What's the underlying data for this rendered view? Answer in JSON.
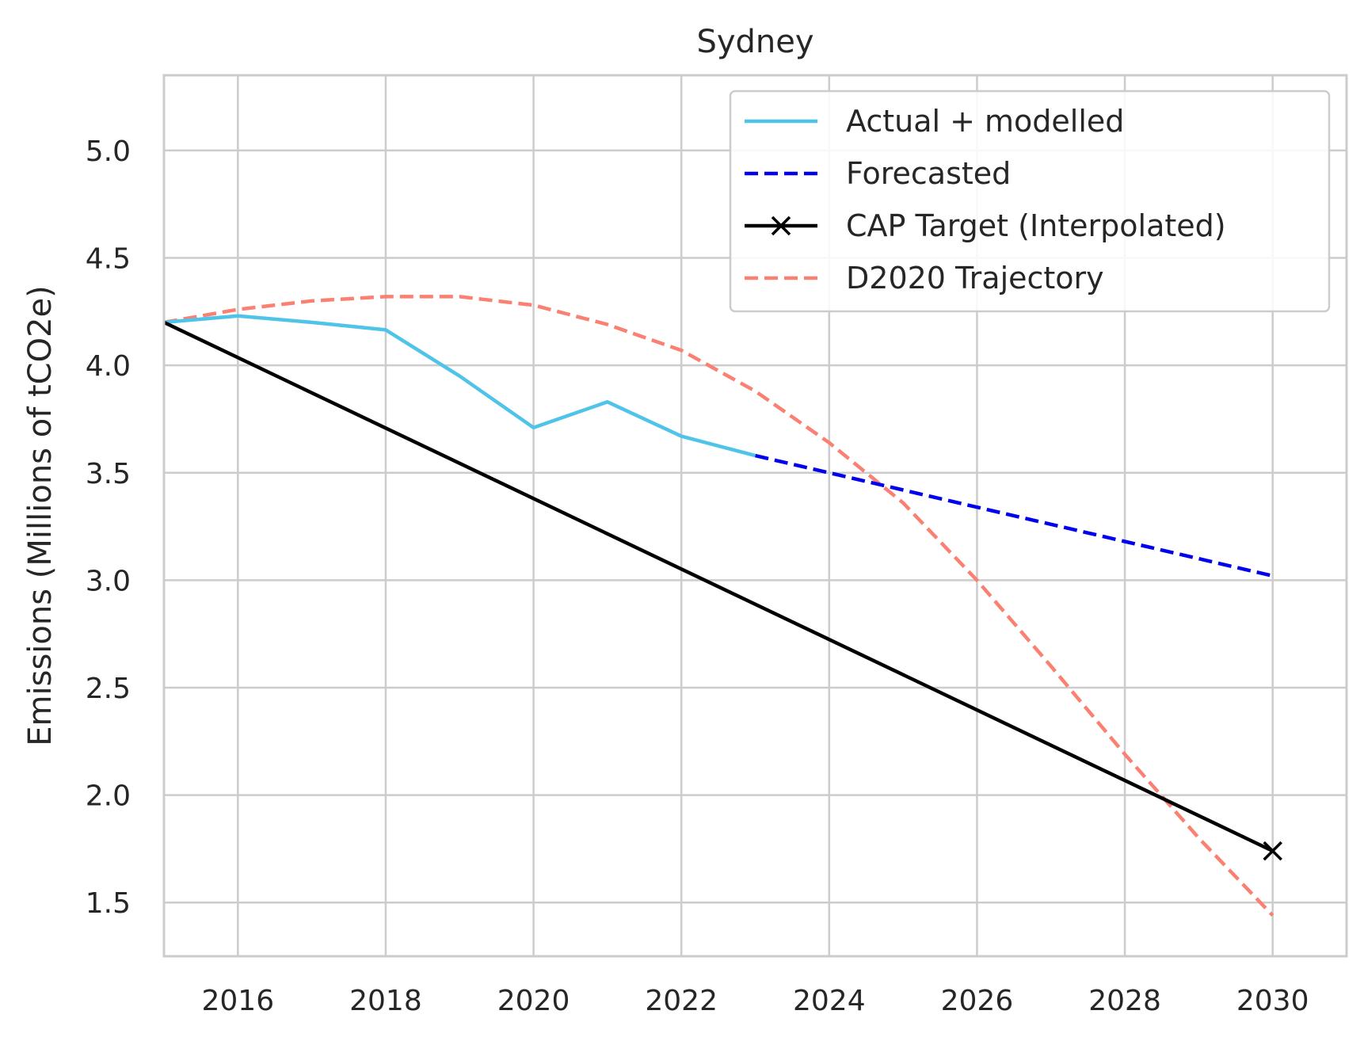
{
  "chart_data": {
    "type": "line",
    "title": "Sydney",
    "xlabel": "",
    "ylabel": "Emissions (Millions of tCO2e)",
    "xlim": [
      2015,
      2031
    ],
    "ylim": [
      1.25,
      5.35
    ],
    "xticks": [
      2016,
      2018,
      2020,
      2022,
      2024,
      2026,
      2028,
      2030
    ],
    "yticks": [
      1.5,
      2.0,
      2.5,
      3.0,
      3.5,
      4.0,
      4.5,
      5.0
    ],
    "xtick_labels": [
      "2016",
      "2018",
      "2020",
      "2022",
      "2024",
      "2026",
      "2028",
      "2030"
    ],
    "ytick_labels": [
      "1.5",
      "2.0",
      "2.5",
      "3.0",
      "3.5",
      "4.0",
      "4.5",
      "5.0"
    ],
    "grid": true,
    "legend_position": "top-right",
    "series": [
      {
        "name": "Actual + modelled",
        "style": "solid",
        "color": "#4fc3e8",
        "x": [
          2015,
          2016,
          2017,
          2018,
          2019,
          2020,
          2021,
          2022,
          2023
        ],
        "y": [
          4.2,
          4.23,
          4.2,
          4.165,
          3.95,
          3.71,
          3.83,
          3.67,
          3.58
        ]
      },
      {
        "name": "Forecasted",
        "style": "dashed",
        "color": "#0000ee",
        "x": [
          2023,
          2024,
          2025,
          2026,
          2027,
          2028,
          2029,
          2030
        ],
        "y": [
          3.58,
          3.5,
          3.42,
          3.34,
          3.26,
          3.18,
          3.1,
          3.02
        ]
      },
      {
        "name": "CAP Target (Interpolated)",
        "style": "solid",
        "color": "#000000",
        "marker": "x",
        "x": [
          2015,
          2030
        ],
        "y": [
          4.2,
          1.74
        ]
      },
      {
        "name": "D2020 Trajectory",
        "style": "dashed",
        "color": "#fa8072",
        "x": [
          2015,
          2016,
          2017,
          2018,
          2019,
          2020,
          2021,
          2022,
          2023,
          2024,
          2025,
          2026,
          2027,
          2028,
          2029,
          2030
        ],
        "y": [
          4.2,
          4.26,
          4.3,
          4.32,
          4.32,
          4.28,
          4.19,
          4.07,
          3.88,
          3.64,
          3.36,
          3.0,
          2.6,
          2.19,
          1.8,
          1.44
        ]
      }
    ]
  }
}
